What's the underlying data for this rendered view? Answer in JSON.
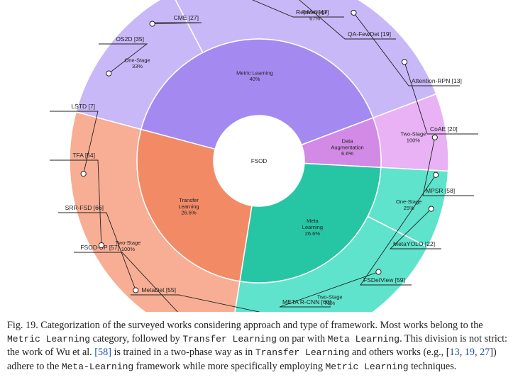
{
  "chart_data": {
    "type": "sunburst",
    "center_label": "FSOD",
    "inner_ring": [
      {
        "name": "Metric Learning",
        "percent_label": "40%",
        "value": 40,
        "color": "#a48af0"
      },
      {
        "name": "Data Augmentation",
        "percent_label": "6.6%",
        "value": 6.6,
        "color": "#d38ae6"
      },
      {
        "name": "Meta Learning",
        "percent_label": "26.6%",
        "value": 26.6,
        "color": "#26c6a4"
      },
      {
        "name": "Transfer Learning",
        "percent_label": "26.6%",
        "value": 26.6,
        "color": "#f28a66"
      }
    ],
    "outer_ring": [
      {
        "parent": "Metric Learning",
        "name": "One-Stage",
        "percent_label": "33%",
        "value": 13.2,
        "color": "#c9b8f8"
      },
      {
        "parent": "Metric Learning",
        "name": "Two-Stage",
        "percent_label": "67%",
        "value": 26.8,
        "color": "#c9b8f8"
      },
      {
        "parent": "Data Augmentation",
        "name": "Two-Stage",
        "percent_label": "100%",
        "value": 6.6,
        "color": "#e9b2f5"
      },
      {
        "parent": "Meta Learning",
        "name": "One-Stage",
        "percent_label": "25%",
        "value": 6.65,
        "color": "#5fe3cc"
      },
      {
        "parent": "Meta Learning",
        "name": "Two-Stage",
        "percent_label": "75%",
        "value": 19.95,
        "color": "#5fe3cc"
      },
      {
        "parent": "Transfer Learning",
        "name": "Two-Stage",
        "percent_label": "100%",
        "value": 26.6,
        "color": "#f7ae94"
      }
    ],
    "works": [
      {
        "label": "CME [27]",
        "segment": "Metric Learning / One-Stage"
      },
      {
        "label": "OS2D [35]",
        "segment": "Metric Learning / One-Stage"
      },
      {
        "label": "RepMet [47]",
        "segment": "Metric Learning / Two-Stage"
      },
      {
        "label": "QA-FewDet [19]",
        "segment": "Metric Learning / Two-Stage"
      },
      {
        "label": "Attention-RPN [13]",
        "segment": "Metric Learning / Two-Stage"
      },
      {
        "label": "CoAE [20]",
        "segment": "Metric Learning / Two-Stage"
      },
      {
        "label": "MPSR [58]",
        "segment": "Data Augmentation / Two-Stage"
      },
      {
        "label": "MetaYOLO [22]",
        "segment": "Meta Learning / One-Stage"
      },
      {
        "label": "FSDetView [59]",
        "segment": "Meta Learning / One-Stage"
      },
      {
        "label": "META R-CNN [60]",
        "segment": "Meta Learning / Two-Stage"
      },
      {
        "label": "MetaDet [55]",
        "segment": "Meta Learning / Two-Stage"
      },
      {
        "label": "FSOD-UP [57]",
        "segment": "Transfer Learning / Two-Stage"
      },
      {
        "label": "SRR-FSD [66]",
        "segment": "Transfer Learning / Two-Stage"
      },
      {
        "label": "TFA [54]",
        "segment": "Transfer Learning / Two-Stage"
      },
      {
        "label": "LSTD [7]",
        "segment": "Transfer Learning / Two-Stage"
      }
    ]
  },
  "caption": {
    "s1": "Fig. 19. Categorization of the surveyed works considering approach and type of framework. Most works belong to the ",
    "m1": "Metric Learning",
    "s2": " category, followed by ",
    "m2": "Transfer Learning",
    "s3": " on par with ",
    "m3": "Meta Learning",
    "s4": ". This division is not strict: the work of Wu et al. ",
    "r1": "[58]",
    "s5": " is trained in a two-phase way as in ",
    "m4": "Transfer Learning",
    "s6": " and others works (e.g., [",
    "r2": "13",
    "s7": ", ",
    "r3": "19",
    "s8": ", ",
    "r4": "27",
    "s9": "]) adhere to the ",
    "m5": "Meta-Learning",
    "s10": " framework while more specifically employing ",
    "m6": "Metric Learning",
    "s11": " techniques."
  }
}
